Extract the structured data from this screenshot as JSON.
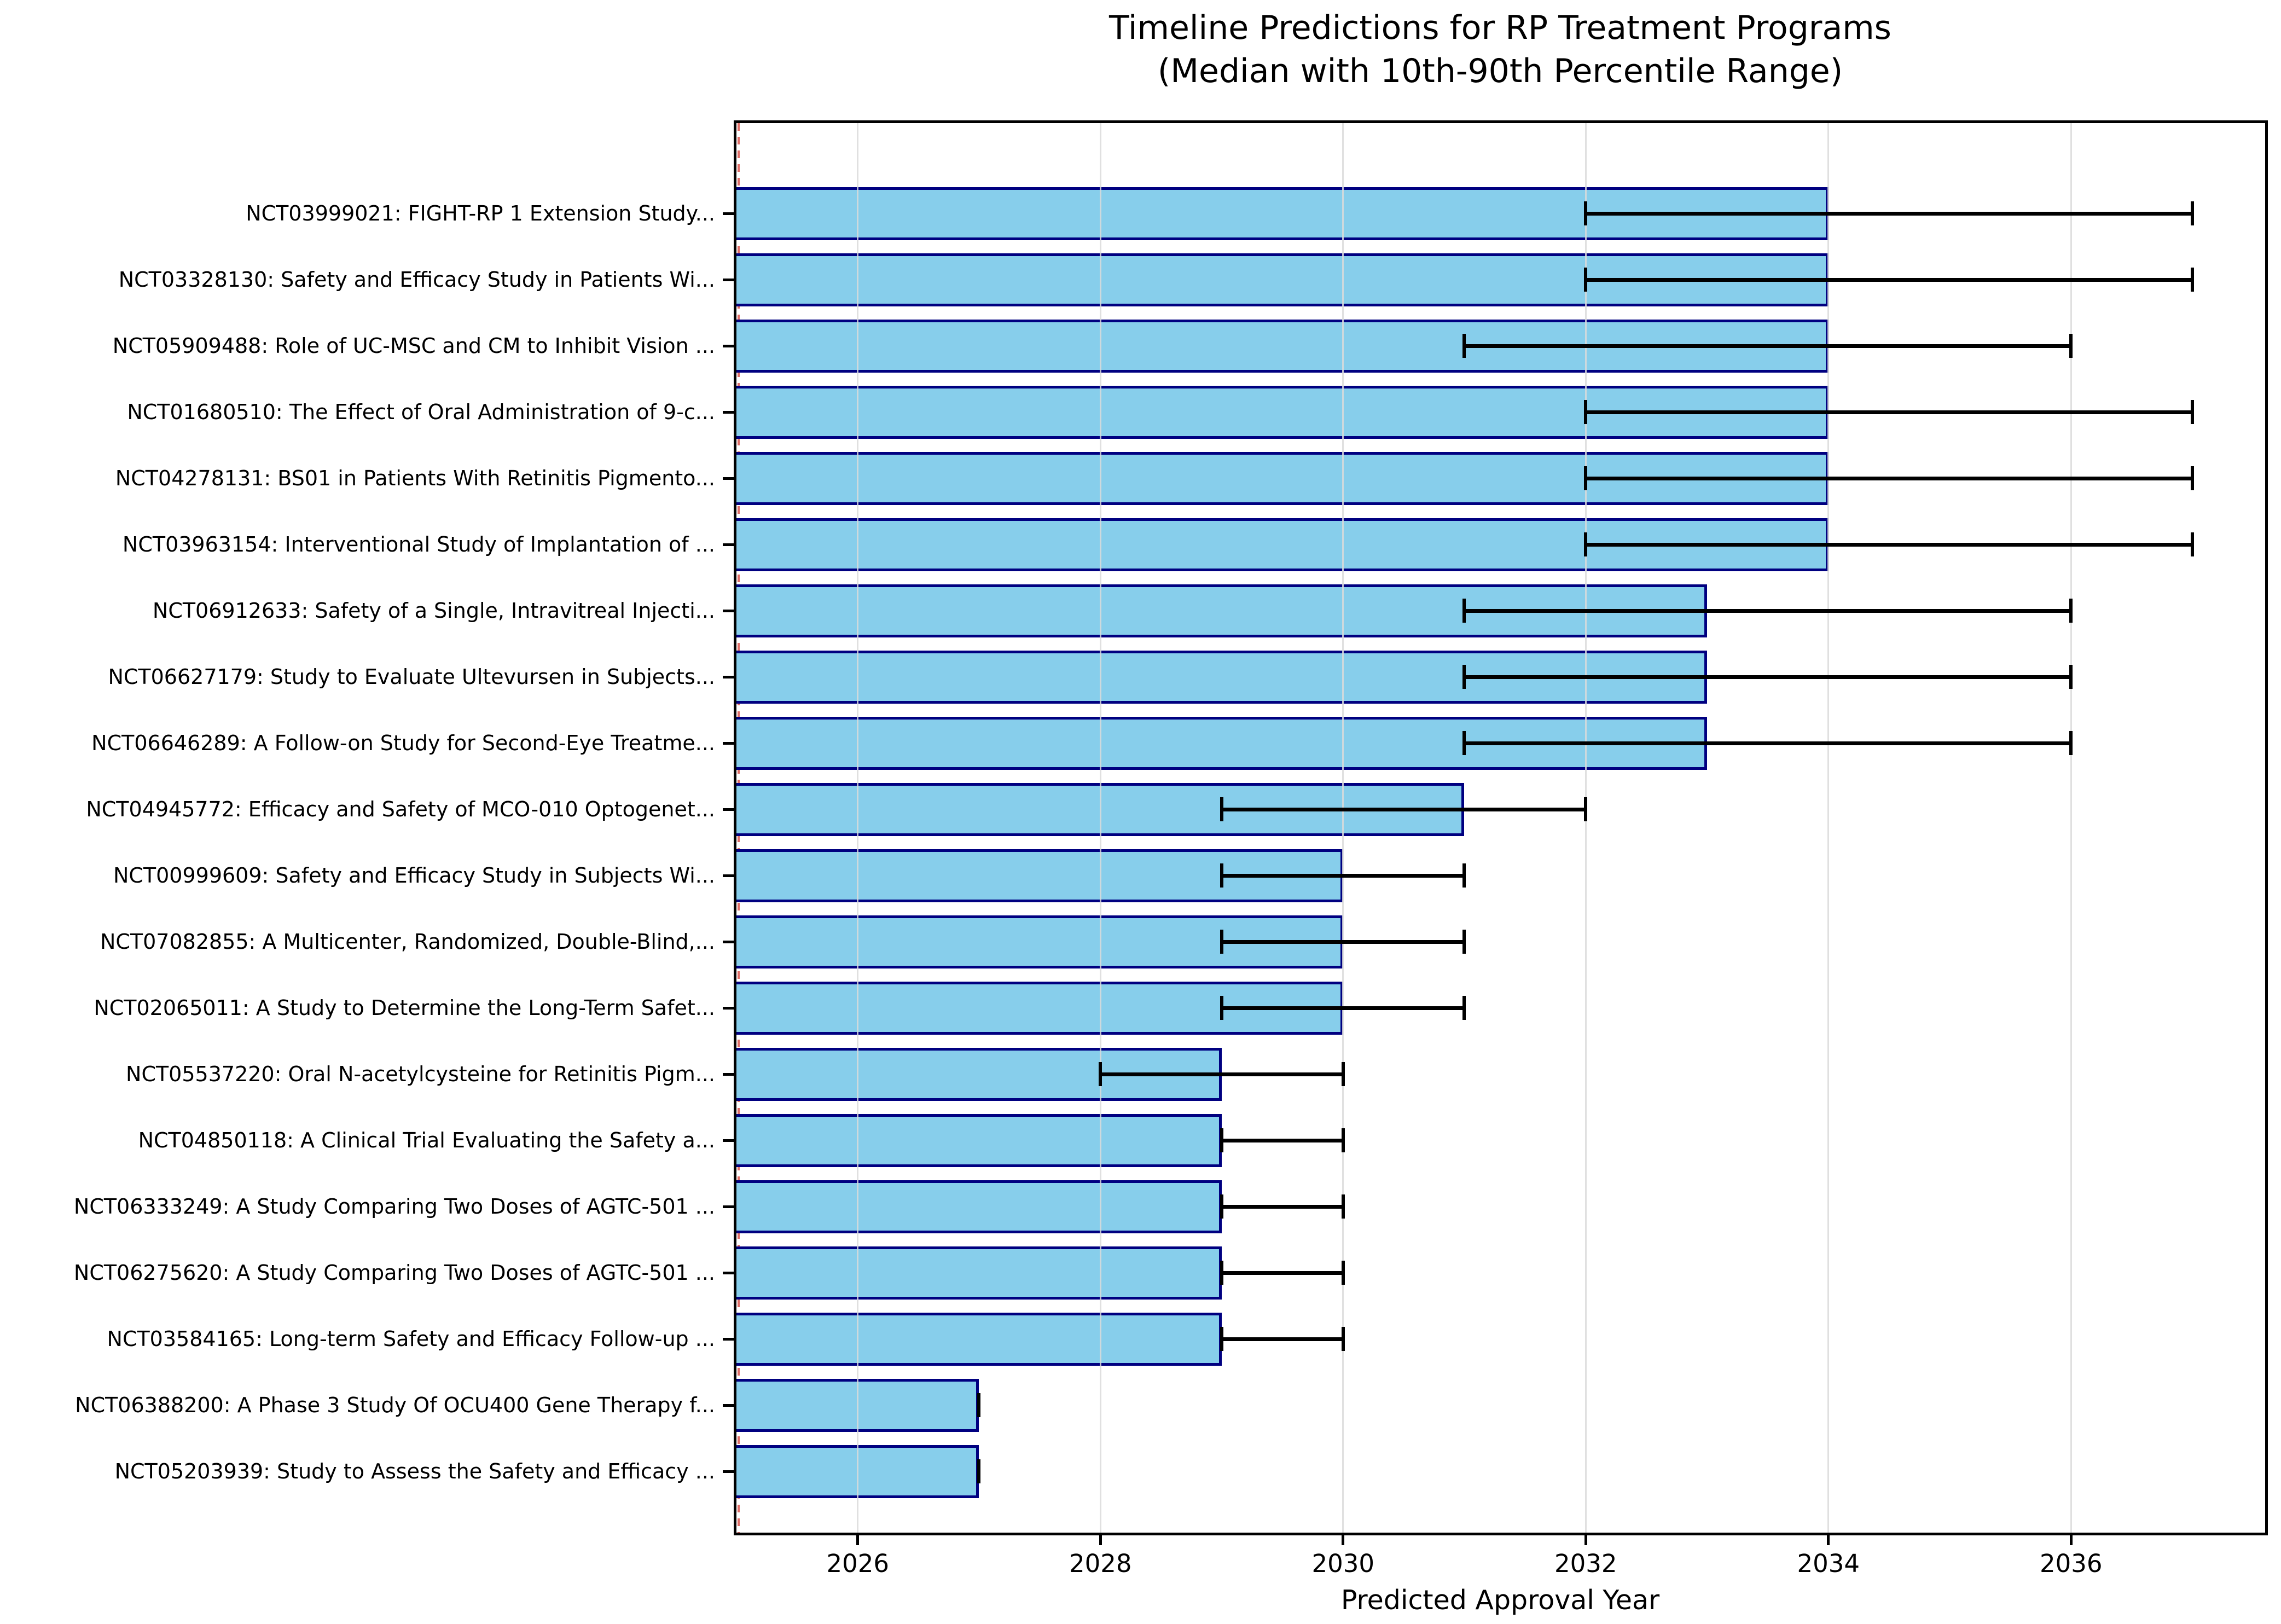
{
  "header": {
    "title_line1": "Timeline Predictions for RP Treatment Programs",
    "title_line2": "(Median with 10th-90th Percentile Range)"
  },
  "colors": {
    "bar_fill": "#87CEEB",
    "bar_edge": "#000080",
    "error_bar": "#000000",
    "gridline": "#dadada",
    "reference_line": "#d63c33",
    "background": "#ffffff",
    "text": "#000000"
  },
  "chart_data": {
    "type": "bar",
    "orientation": "horizontal",
    "title": "Timeline Predictions for RP Treatment Programs\n(Median with 10th-90th Percentile Range)",
    "xlabel": "Predicted Approval Year",
    "ylabel": "",
    "xlim": [
      2025,
      2037.6
    ],
    "x_ticks": [
      2026,
      2028,
      2030,
      2032,
      2034,
      2036
    ],
    "grid": "vertical gridlines, drawn above bars",
    "legend": "none",
    "error_bars": "10th-90th percentile, black with caps",
    "reference_line": {
      "x": 2025,
      "style": "dashed",
      "color": "#d63c33"
    },
    "bars": [
      {
        "label": "NCT03999021: FIGHT-RP 1 Extension Study...",
        "median": 2034,
        "p10": 2032,
        "p90": 2037
      },
      {
        "label": "NCT03328130: Safety and Efficacy Study in Patients Wi...",
        "median": 2034,
        "p10": 2032,
        "p90": 2037
      },
      {
        "label": "NCT05909488: Role of UC-MSC and CM to Inhibit Vision ...",
        "median": 2034,
        "p10": 2031,
        "p90": 2036
      },
      {
        "label": "NCT01680510: The Effect of Oral Administration of 9-c...",
        "median": 2034,
        "p10": 2032,
        "p90": 2037
      },
      {
        "label": "NCT04278131: BS01 in Patients With Retinitis Pigmento...",
        "median": 2034,
        "p10": 2032,
        "p90": 2037
      },
      {
        "label": "NCT03963154: Interventional Study of Implantation of ...",
        "median": 2034,
        "p10": 2032,
        "p90": 2037
      },
      {
        "label": "NCT06912633: Safety of a Single, Intravitreal Injecti...",
        "median": 2033,
        "p10": 2031,
        "p90": 2036
      },
      {
        "label": "NCT06627179: Study to Evaluate Ultevursen in Subjects...",
        "median": 2033,
        "p10": 2031,
        "p90": 2036
      },
      {
        "label": "NCT06646289: A Follow-on Study for Second-Eye Treatme...",
        "median": 2033,
        "p10": 2031,
        "p90": 2036
      },
      {
        "label": "NCT04945772: Efficacy and Safety of MCO-010 Optogenet...",
        "median": 2031,
        "p10": 2029,
        "p90": 2032
      },
      {
        "label": "NCT00999609: Safety and Efficacy Study in Subjects Wi...",
        "median": 2030,
        "p10": 2029,
        "p90": 2031
      },
      {
        "label": "NCT07082855: A Multicenter, Randomized, Double-Blind,...",
        "median": 2030,
        "p10": 2029,
        "p90": 2031
      },
      {
        "label": "NCT02065011: A Study to Determine the Long-Term Safet...",
        "median": 2030,
        "p10": 2029,
        "p90": 2031
      },
      {
        "label": "NCT05537220: Oral N-acetylcysteine for Retinitis Pigm...",
        "median": 2029,
        "p10": 2028,
        "p90": 2030
      },
      {
        "label": "NCT04850118: A Clinical Trial Evaluating the Safety a...",
        "median": 2029,
        "p10": 2029,
        "p90": 2030
      },
      {
        "label": "NCT06333249: A Study Comparing Two Doses of AGTC-501 ...",
        "median": 2029,
        "p10": 2029,
        "p90": 2030
      },
      {
        "label": "NCT06275620: A Study Comparing Two Doses of AGTC-501 ...",
        "median": 2029,
        "p10": 2029,
        "p90": 2030
      },
      {
        "label": "NCT03584165: Long-term Safety and Efficacy Follow-up ...",
        "median": 2029,
        "p10": 2029,
        "p90": 2030
      },
      {
        "label": "NCT06388200: A Phase 3 Study Of OCU400 Gene Therapy f...",
        "median": 2027,
        "p10": 2027,
        "p90": 2027
      },
      {
        "label": "NCT05203939: Study to Assess the Safety and Efficacy ...",
        "median": 2027,
        "p10": 2027,
        "p90": 2027
      }
    ]
  }
}
